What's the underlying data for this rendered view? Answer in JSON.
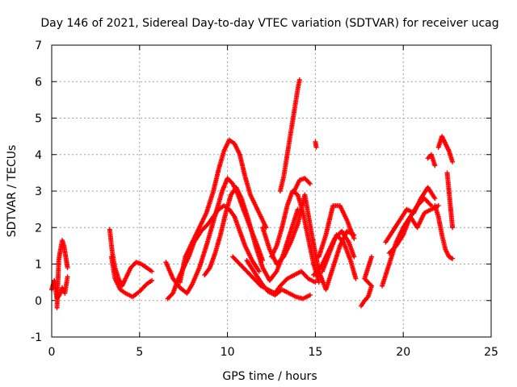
{
  "chart_data": {
    "type": "scatter",
    "title": "Day 146 of 2021, Sidereal Day-to-day VTEC variation (SDTVAR) for receiver ucag",
    "xlabel": "GPS time / hours",
    "ylabel": "SDTVAR / TECUs",
    "xlim": [
      0,
      25
    ],
    "ylim": [
      -1,
      7
    ],
    "xticks": [
      "0",
      "5",
      "10",
      "15",
      "20",
      "25"
    ],
    "yticks": [
      "-1",
      "0",
      "1",
      "2",
      "3",
      "4",
      "5",
      "6",
      "7"
    ],
    "grid": true,
    "marker": "+",
    "color": "#ff0000",
    "series": [
      {
        "name": "t0",
        "x": [
          0.0,
          0.15,
          0.3,
          0.45,
          0.6,
          0.75,
          0.9
        ],
        "y": [
          0.3,
          0.55,
          0.05,
          0.15,
          0.35,
          0.2,
          0.65
        ]
      },
      {
        "name": "t1",
        "x": [
          0.3,
          0.4,
          0.5,
          0.6,
          0.7,
          0.8,
          0.9
        ],
        "y": [
          -0.2,
          1.1,
          1.4,
          1.65,
          1.5,
          1.2,
          0.9
        ]
      },
      {
        "name": "t2",
        "x": [
          3.3,
          3.45,
          3.6,
          3.8,
          4.0,
          4.2,
          4.5,
          4.8,
          5.1,
          5.4,
          5.7
        ],
        "y": [
          1.95,
          1.3,
          0.9,
          0.6,
          0.4,
          0.6,
          0.9,
          1.05,
          1.0,
          0.9,
          0.8
        ]
      },
      {
        "name": "t3",
        "x": [
          3.4,
          3.6,
          3.9,
          4.2,
          4.6,
          5.0,
          5.4,
          5.7
        ],
        "y": [
          1.2,
          0.6,
          0.3,
          0.2,
          0.1,
          0.25,
          0.45,
          0.55
        ]
      },
      {
        "name": "t4",
        "x": [
          6.6,
          6.9,
          7.2,
          7.5,
          7.8,
          8.1,
          8.5,
          8.9,
          9.2,
          9.5,
          9.8,
          10.1,
          10.4,
          10.7,
          11.0,
          11.4,
          11.8
        ],
        "y": [
          0.05,
          0.2,
          0.6,
          0.9,
          1.2,
          1.6,
          1.9,
          2.1,
          2.3,
          2.5,
          2.6,
          2.5,
          2.3,
          1.9,
          1.5,
          1.1,
          0.8
        ]
      },
      {
        "name": "t5",
        "x": [
          6.5,
          6.9,
          7.3,
          7.7,
          8.0,
          8.4,
          8.8,
          9.1,
          9.4,
          9.7,
          10.0,
          10.3,
          10.6,
          10.9,
          11.3,
          11.7,
          12.0
        ],
        "y": [
          1.05,
          0.6,
          0.35,
          0.2,
          0.45,
          0.9,
          1.5,
          2.0,
          2.5,
          3.0,
          3.35,
          3.2,
          2.9,
          2.5,
          2.0,
          1.5,
          1.1
        ]
      },
      {
        "name": "t6",
        "x": [
          7.3,
          7.6,
          8.0,
          8.4,
          8.8,
          9.2,
          9.5,
          9.8,
          10.1,
          10.4,
          10.7,
          11.0,
          11.3,
          11.6,
          11.9,
          12.2
        ],
        "y": [
          0.5,
          1.2,
          1.6,
          2.0,
          2.4,
          3.0,
          3.6,
          4.1,
          4.4,
          4.3,
          4.0,
          3.4,
          2.9,
          2.6,
          2.3,
          2.0
        ]
      },
      {
        "name": "t7",
        "x": [
          8.7,
          9.0,
          9.3,
          9.6,
          9.9,
          10.2,
          10.5,
          10.8,
          11.2,
          11.6,
          12.0,
          12.4,
          12.8,
          13.2,
          13.6,
          14.0
        ],
        "y": [
          0.7,
          0.9,
          1.3,
          1.8,
          2.4,
          2.9,
          3.1,
          2.8,
          2.2,
          1.5,
          0.9,
          0.55,
          0.8,
          1.3,
          1.9,
          2.5
        ]
      },
      {
        "name": "t8",
        "x": [
          10.3,
          10.7,
          11.1,
          11.5,
          11.9,
          12.3,
          12.7,
          13.0,
          13.4,
          13.8,
          14.2,
          14.6,
          15.0
        ],
        "y": [
          1.2,
          1.0,
          0.8,
          0.6,
          0.4,
          0.3,
          0.2,
          0.4,
          0.6,
          0.7,
          0.8,
          0.6,
          0.5
        ]
      },
      {
        "name": "t9",
        "x": [
          11.1,
          11.5,
          11.9,
          12.3,
          12.7,
          13.1,
          13.5,
          13.9,
          14.3,
          14.7
        ],
        "y": [
          1.1,
          0.8,
          0.5,
          0.25,
          0.15,
          0.3,
          0.2,
          0.1,
          0.05,
          0.15
        ]
      },
      {
        "name": "t10",
        "x": [
          12.0,
          12.4,
          12.8,
          13.2,
          13.6,
          14.0,
          14.4,
          14.8,
          15.2,
          15.6,
          16.0,
          16.4,
          16.8,
          17.2
        ],
        "y": [
          2.0,
          1.4,
          1.0,
          1.2,
          1.6,
          2.1,
          2.9,
          1.8,
          0.8,
          0.3,
          0.9,
          1.5,
          1.9,
          1.8
        ]
      },
      {
        "name": "t11",
        "x": [
          12.5,
          12.8,
          13.1,
          13.4,
          13.7,
          14.0,
          14.3,
          14.6,
          14.9,
          15.2
        ],
        "y": [
          1.2,
          1.5,
          2.0,
          2.6,
          3.0,
          2.9,
          2.4,
          1.7,
          1.0,
          0.5
        ]
      },
      {
        "name": "t12",
        "x": [
          13.0,
          13.2,
          13.4,
          13.6,
          13.8,
          14.0,
          14.1
        ],
        "y": [
          3.0,
          3.4,
          4.0,
          4.6,
          5.2,
          5.8,
          6.05
        ]
      },
      {
        "name": "t13",
        "x": [
          13.8,
          14.1,
          14.4,
          14.7
        ],
        "y": [
          3.0,
          3.3,
          3.35,
          3.2
        ]
      },
      {
        "name": "t14",
        "x": [
          15.0,
          15.05
        ],
        "y": [
          4.35,
          4.2
        ]
      },
      {
        "name": "t15",
        "x": [
          14.9,
          15.3,
          15.7,
          16.1,
          16.5,
          16.9,
          17.2
        ],
        "y": [
          0.7,
          0.9,
          1.3,
          1.7,
          1.9,
          1.6,
          1.2
        ]
      },
      {
        "name": "t16",
        "x": [
          15.2,
          15.6,
          16.0,
          16.4,
          16.8,
          17.2
        ],
        "y": [
          1.2,
          1.8,
          2.6,
          2.6,
          2.2,
          1.7
        ]
      },
      {
        "name": "t17",
        "x": [
          15.4,
          15.8,
          16.2,
          16.6,
          17.0,
          17.3
        ],
        "y": [
          0.8,
          1.3,
          1.8,
          1.6,
          1.1,
          0.6
        ]
      },
      {
        "name": "t18",
        "x": [
          17.6,
          17.8,
          18.0,
          18.2,
          17.8,
          18.0,
          18.2
        ],
        "y": [
          -0.15,
          0.0,
          0.1,
          0.4,
          0.6,
          0.9,
          1.2
        ]
      },
      {
        "name": "t19",
        "x": [
          18.8,
          19.2,
          19.6,
          20.0,
          20.4,
          20.8,
          21.2,
          21.6
        ],
        "y": [
          0.4,
          1.0,
          1.6,
          2.0,
          2.3,
          2.6,
          2.8,
          2.6
        ]
      },
      {
        "name": "t20",
        "x": [
          19.0,
          19.4,
          19.8,
          20.2,
          20.6,
          21.0,
          21.4,
          21.8
        ],
        "y": [
          1.6,
          1.9,
          2.2,
          2.5,
          2.4,
          2.8,
          3.1,
          2.8
        ]
      },
      {
        "name": "t21",
        "x": [
          19.2,
          19.6,
          20.0,
          20.4,
          20.8,
          21.2,
          21.6,
          22.0
        ],
        "y": [
          1.3,
          1.5,
          1.8,
          2.3,
          2.0,
          2.4,
          2.5,
          2.6
        ]
      },
      {
        "name": "t22",
        "x": [
          21.4,
          21.6,
          21.8
        ],
        "y": [
          3.9,
          4.0,
          3.7
        ]
      },
      {
        "name": "t23",
        "x": [
          22.0,
          22.2,
          22.4,
          22.6,
          22.8
        ],
        "y": [
          4.2,
          4.5,
          4.3,
          4.1,
          3.8
        ]
      },
      {
        "name": "t24",
        "x": [
          21.8,
          22.0,
          22.2,
          22.4,
          22.6,
          22.8
        ],
        "y": [
          2.6,
          2.3,
          1.8,
          1.4,
          1.2,
          1.15
        ]
      },
      {
        "name": "t25",
        "x": [
          22.5,
          22.6,
          22.7,
          22.8
        ],
        "y": [
          3.5,
          3.0,
          2.5,
          2.0
        ]
      }
    ]
  }
}
